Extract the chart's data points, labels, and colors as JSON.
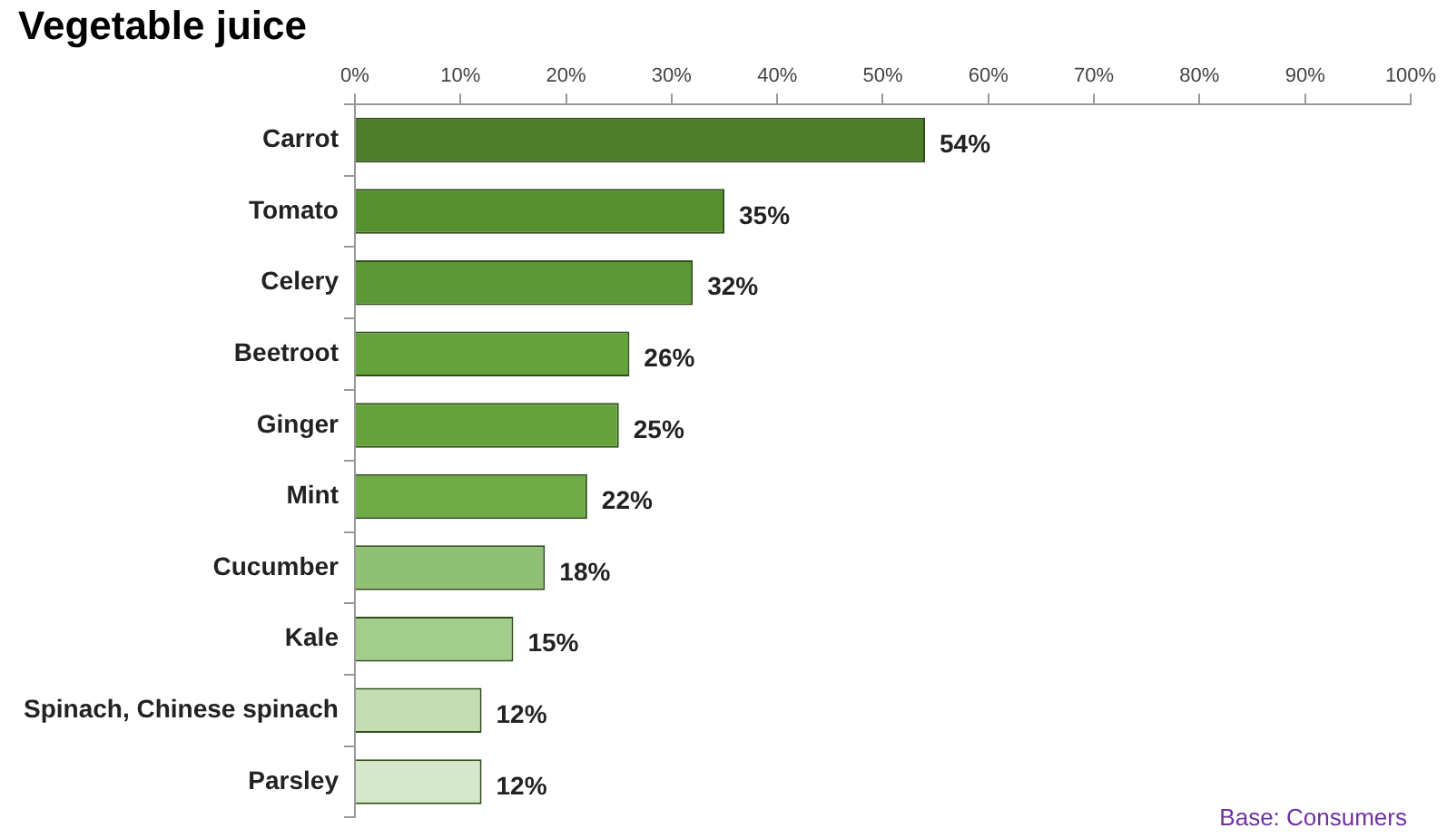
{
  "chart_data": {
    "type": "bar",
    "orientation": "horizontal",
    "title": "Vegetable juice",
    "categories": [
      "Carrot",
      "Tomato",
      "Celery",
      "Beetroot",
      "Ginger",
      "Mint",
      "Cucumber",
      "Kale",
      "Spinach, Chinese spinach",
      "Parsley"
    ],
    "values": [
      54,
      35,
      32,
      26,
      25,
      22,
      18,
      15,
      12,
      12
    ],
    "value_labels": [
      "54%",
      "35%",
      "32%",
      "26%",
      "25%",
      "22%",
      "18%",
      "15%",
      "12%",
      "12%"
    ],
    "colors": [
      "#4e7d2c",
      "#57902f",
      "#5c9833",
      "#64a33a",
      "#64a33a",
      "#6eac45",
      "#8fc074",
      "#a3cd8b",
      "#c3deb2",
      "#d5e8c9"
    ],
    "xlim": [
      0,
      100
    ],
    "xticks": [
      {
        "value": 0,
        "label": "0%"
      },
      {
        "value": 10,
        "label": "10%"
      },
      {
        "value": 20,
        "label": "20%"
      },
      {
        "value": 30,
        "label": "30%"
      },
      {
        "value": 40,
        "label": "40%"
      },
      {
        "value": 50,
        "label": "50%"
      },
      {
        "value": 60,
        "label": "60%"
      },
      {
        "value": 70,
        "label": "70%"
      },
      {
        "value": 80,
        "label": "80%"
      },
      {
        "value": 90,
        "label": "90%"
      },
      {
        "value": 100,
        "label": "100%"
      }
    ],
    "grid": false,
    "legend": false,
    "annotations": [
      "Base: Consumers"
    ]
  }
}
